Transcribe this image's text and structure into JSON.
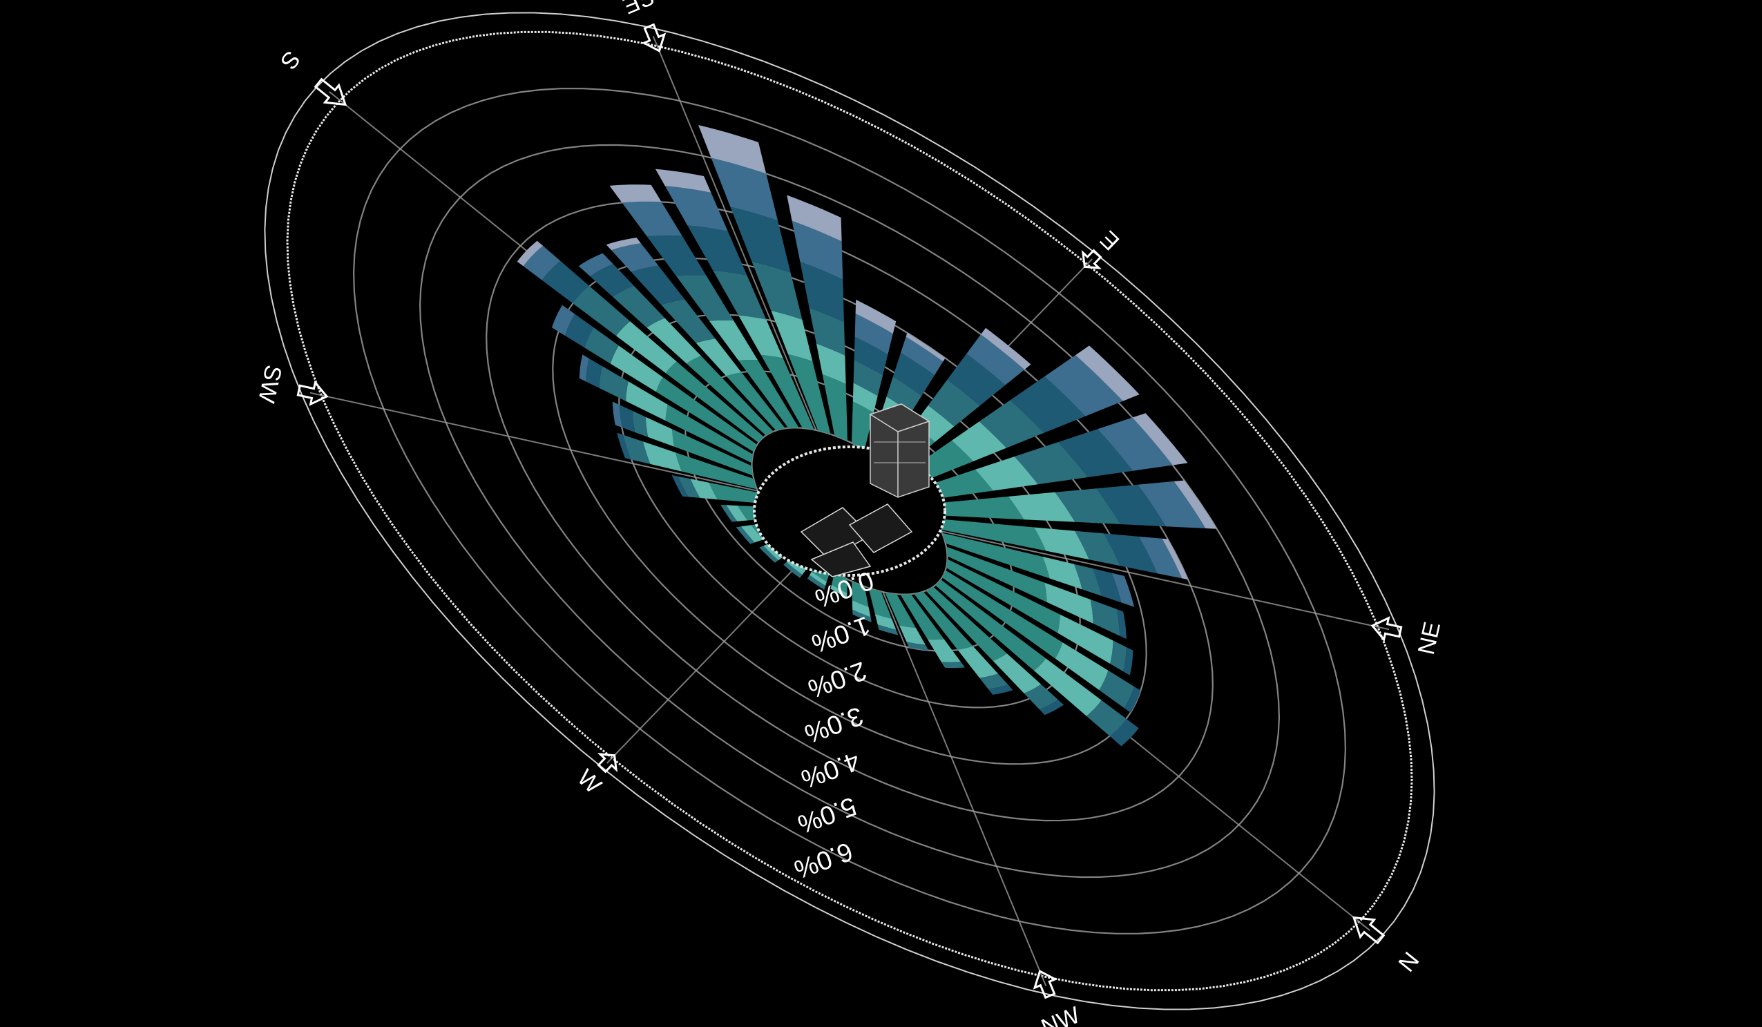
{
  "chart_data": {
    "type": "windrose",
    "title": "",
    "directions": [
      "N",
      "NE",
      "E",
      "SE",
      "S",
      "SW",
      "W",
      "NW"
    ],
    "radial_ticks": [
      "0.0%",
      "1.0%",
      "2.0%",
      "3.0%",
      "4.0%",
      "5.0%",
      "6.0%"
    ],
    "radial_max_percent": 7.0,
    "sector_count": 36,
    "sector_start_bearing_deg": 0,
    "bin_colors": [
      "#2e8a80",
      "#5fb8ad",
      "#2b6f7d",
      "#1f5a75",
      "#3d6e8f",
      "#9aa6be"
    ],
    "sectors_percent_by_bin": [
      [
        1.7,
        0.9,
        0.4,
        0.2,
        0.0,
        0.0
      ],
      [
        1.8,
        0.7,
        0.4,
        0.1,
        0.0,
        0.0
      ],
      [
        1.7,
        0.8,
        0.2,
        0.1,
        0.0,
        0.0
      ],
      [
        1.5,
        0.7,
        0.4,
        0.1,
        0.0,
        0.0
      ],
      [
        1.6,
        0.5,
        0.3,
        0.3,
        0.2,
        0.0
      ],
      [
        1.7,
        0.7,
        0.5,
        0.6,
        0.4,
        0.1
      ],
      [
        1.6,
        0.9,
        0.8,
        0.8,
        0.7,
        0.2
      ],
      [
        1.4,
        0.9,
        1.0,
        0.9,
        0.8,
        0.3
      ],
      [
        1.5,
        0.8,
        0.9,
        1.0,
        0.9,
        0.4
      ],
      [
        1.2,
        0.6,
        0.8,
        0.8,
        0.6,
        0.2
      ],
      [
        1.0,
        0.4,
        0.5,
        0.6,
        0.4,
        0.1
      ],
      [
        0.9,
        0.4,
        0.5,
        0.5,
        0.5,
        0.3
      ],
      [
        1.2,
        0.6,
        0.7,
        0.9,
        0.8,
        0.5
      ],
      [
        1.4,
        0.8,
        0.9,
        1.0,
        0.9,
        0.6
      ],
      [
        1.3,
        0.7,
        0.8,
        0.8,
        0.7,
        0.3
      ],
      [
        1.2,
        0.7,
        0.8,
        0.7,
        0.6,
        0.3
      ],
      [
        1.0,
        0.6,
        0.7,
        0.6,
        0.4,
        0.1
      ],
      [
        1.4,
        0.7,
        0.6,
        0.4,
        0.2,
        0.0
      ],
      [
        1.5,
        0.8,
        0.7,
        0.5,
        0.3,
        0.1
      ],
      [
        1.5,
        0.7,
        0.4,
        0.3,
        0.2,
        0.0
      ],
      [
        1.3,
        0.6,
        0.4,
        0.2,
        0.1,
        0.0
      ],
      [
        1.2,
        0.4,
        0.2,
        0.2,
        0.1,
        0.0
      ],
      [
        1.2,
        0.5,
        0.3,
        0.1,
        0.0,
        0.0
      ],
      [
        0.8,
        0.3,
        0.2,
        0.1,
        0.0,
        0.0
      ],
      [
        0.5,
        0.2,
        0.1,
        0.0,
        0.0,
        0.0
      ],
      [
        0.5,
        0.2,
        0.1,
        0.0,
        0.0,
        0.0
      ],
      [
        0.4,
        0.2,
        0.1,
        0.0,
        0.0,
        0.0
      ],
      [
        0.3,
        0.2,
        0.1,
        0.0,
        0.0,
        0.0
      ],
      [
        0.3,
        0.1,
        0.1,
        0.0,
        0.0,
        0.0
      ],
      [
        0.3,
        0.1,
        0.0,
        0.0,
        0.0,
        0.0
      ],
      [
        0.4,
        0.2,
        0.1,
        0.0,
        0.0,
        0.0
      ],
      [
        0.5,
        0.2,
        0.1,
        0.0,
        0.0,
        0.0
      ],
      [
        0.6,
        0.3,
        0.1,
        0.0,
        0.0,
        0.0
      ],
      [
        0.8,
        0.4,
        0.1,
        0.0,
        0.0,
        0.0
      ],
      [
        1.0,
        0.5,
        0.2,
        0.1,
        0.0,
        0.0
      ],
      [
        1.3,
        0.6,
        0.3,
        0.1,
        0.0,
        0.0
      ]
    ],
    "grid": true,
    "legend": "none"
  }
}
